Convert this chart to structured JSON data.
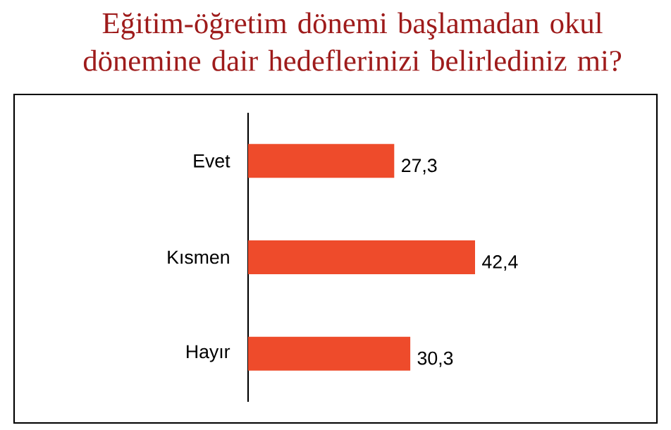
{
  "chart_data": {
    "type": "bar",
    "orientation": "horizontal",
    "title": "Eğitim-öğretim dönemi başlamadan okul dönemine dair hedeflerinizi belirlediniz mi?",
    "categories": [
      "Evet",
      "Kısmen",
      "Hayır"
    ],
    "values": [
      27.3,
      42.4,
      30.3
    ],
    "value_labels": [
      "27,3",
      "42,4",
      "30,3"
    ],
    "color": "#ee4b2b"
  }
}
